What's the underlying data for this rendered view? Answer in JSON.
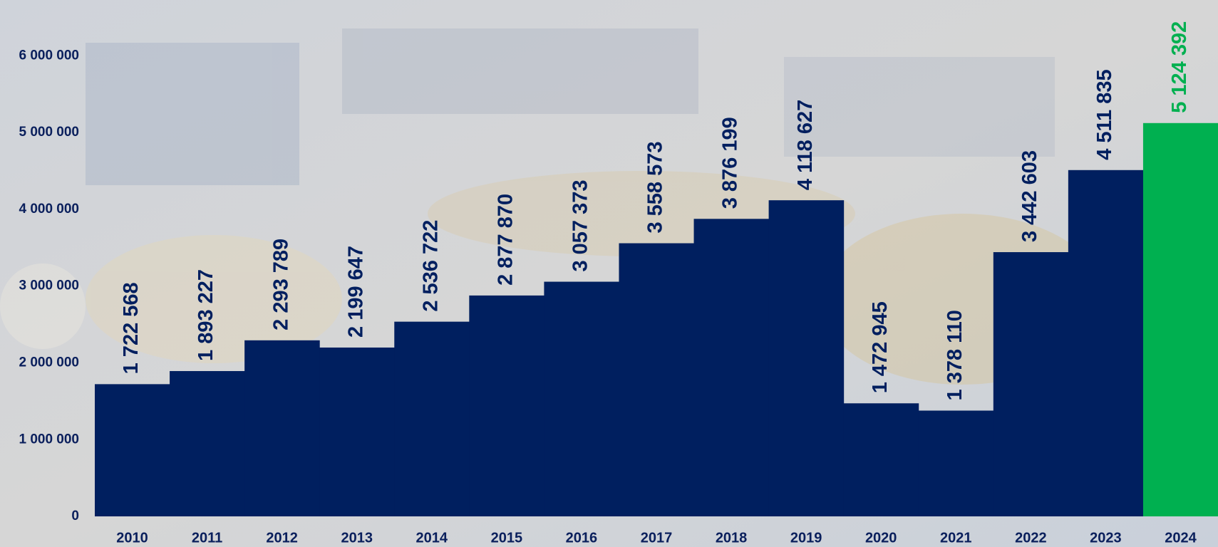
{
  "chart_data": {
    "type": "bar",
    "categories": [
      "2010",
      "2011",
      "2012",
      "2013",
      "2014",
      "2015",
      "2016",
      "2017",
      "2018",
      "2019",
      "2020",
      "2021",
      "2022",
      "2023",
      "2024"
    ],
    "values": [
      1722568,
      1893227,
      2293789,
      2199647,
      2536722,
      2877870,
      3057373,
      3558573,
      3876199,
      4118627,
      1472945,
      1378110,
      3442603,
      4511835,
      5124392
    ],
    "value_labels": [
      "1 722 568",
      "1 893 227",
      "2 293 789",
      "2 199 647",
      "2 536 722",
      "2 877 870",
      "3 057 373",
      "3 558 573",
      "3 876 199",
      "4 118 627",
      "1 472 945",
      "1 378 110",
      "3 442 603",
      "4 511 835",
      "5 124 392"
    ],
    "colors": [
      "#001f5f",
      "#001f5f",
      "#001f5f",
      "#001f5f",
      "#001f5f",
      "#001f5f",
      "#001f5f",
      "#001f5f",
      "#001f5f",
      "#001f5f",
      "#001f5f",
      "#001f5f",
      "#001f5f",
      "#001f5f",
      "#00b050"
    ],
    "ylim": [
      0,
      6700000
    ],
    "yticks": [
      0,
      {
        "value": 1000000,
        "label": "1 000 000"
      },
      {
        "value": 2000000,
        "label": "2 000 000"
      },
      {
        "value": 3000000,
        "label": "3 000 000"
      },
      {
        "value": 4000000,
        "label": "4 000 000"
      },
      {
        "value": 5000000,
        "label": "5 000 000"
      },
      {
        "value": 6000000,
        "label": "6 000 000"
      }
    ],
    "grid": false
  }
}
